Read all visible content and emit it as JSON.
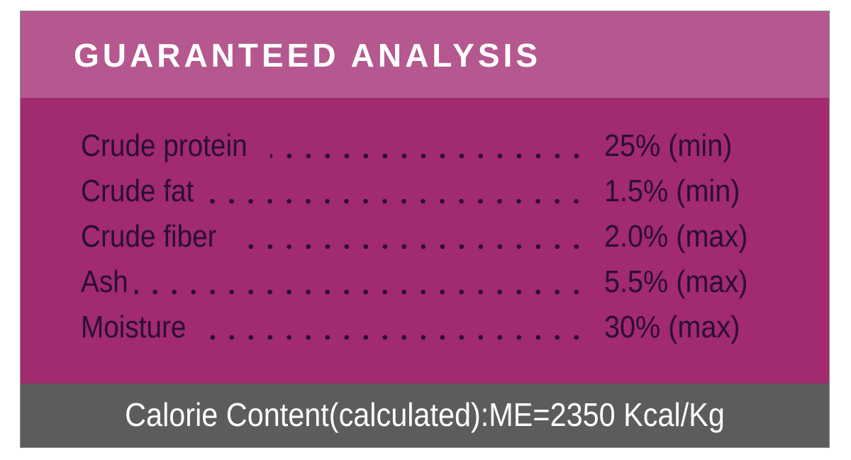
{
  "header": {
    "title": "GUARANTEED ANALYSIS"
  },
  "rows": [
    {
      "label": "Crude protein",
      "value": "25% (min)"
    },
    {
      "label": "Crude fat",
      "value": "1.5% (min)"
    },
    {
      "label": "Crude fiber",
      "value": "2.0% (max)"
    },
    {
      "label": "Ash",
      "value": "5.5% (max)"
    },
    {
      "label": "Moisture",
      "value": "30% (max)"
    }
  ],
  "footer": {
    "text": "Calorie Content(calculated):ME=2350 Kcal/Kg"
  }
}
